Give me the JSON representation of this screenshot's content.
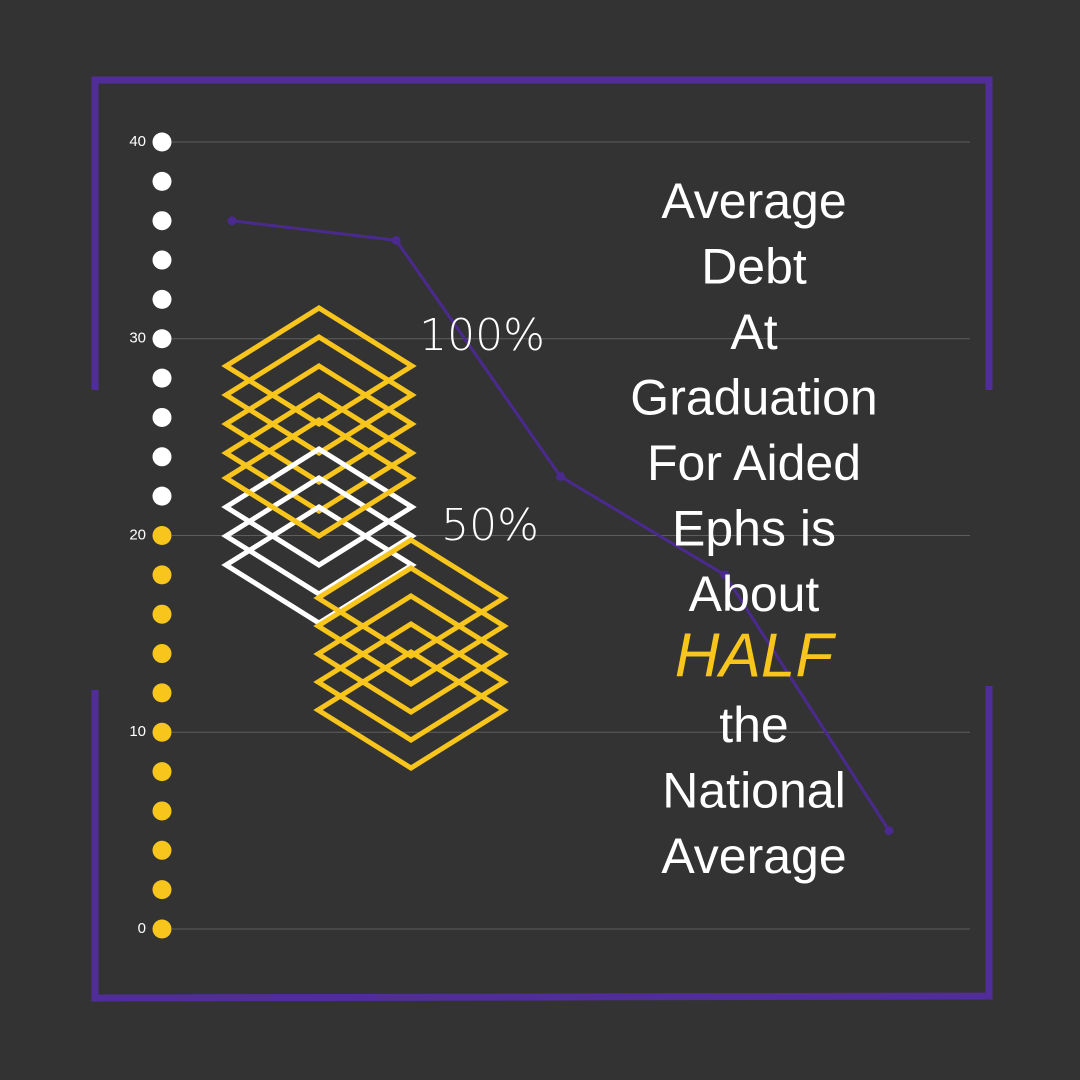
{
  "chart_data": {
    "type": "line",
    "categories": [
      null,
      null,
      null,
      null,
      null
    ],
    "series": [
      {
        "color": "#4b2a90",
        "values": [
          36,
          35,
          23,
          18,
          5
        ]
      }
    ],
    "ylim": [
      0,
      40
    ],
    "yticks": [
      0,
      10,
      20,
      30,
      40
    ],
    "grid": true,
    "annotations": [
      "100%",
      "50%"
    ],
    "headline": [
      "Average",
      "Debt",
      "At",
      "Graduation",
      "For Aided",
      "Ephs is",
      "About",
      "HALF",
      "the",
      "National",
      "Average"
    ],
    "highlight_line": 7,
    "highlight_color": "#f8c51c"
  }
}
